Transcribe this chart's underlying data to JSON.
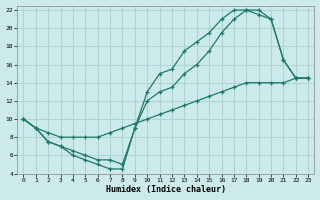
{
  "xlabel": "Humidex (Indice chaleur)",
  "bg_color": "#cdeaea",
  "grid_color": "#aed4d4",
  "line_color": "#1a7a6a",
  "xlim": [
    -0.5,
    23.5
  ],
  "ylim": [
    4,
    22.5
  ],
  "xticks": [
    0,
    1,
    2,
    3,
    4,
    5,
    6,
    7,
    8,
    9,
    10,
    11,
    12,
    13,
    14,
    15,
    16,
    17,
    18,
    19,
    20,
    21,
    22,
    23
  ],
  "yticks": [
    4,
    6,
    8,
    10,
    12,
    14,
    16,
    18,
    20,
    22
  ],
  "line1_x": [
    0,
    1,
    2,
    3,
    4,
    5,
    6,
    7,
    8,
    9,
    10,
    11,
    12,
    13,
    14,
    15,
    16,
    17,
    18,
    19,
    20,
    21,
    22,
    23
  ],
  "line1_y": [
    10,
    9,
    7.5,
    7,
    6,
    5.5,
    5,
    4.5,
    4.5,
    9,
    13,
    15,
    15.5,
    17.5,
    18.5,
    19.5,
    21,
    22,
    22,
    22,
    21,
    16.5,
    14.5,
    14.5
  ],
  "line2_x": [
    0,
    1,
    2,
    3,
    4,
    5,
    6,
    7,
    8,
    9,
    10,
    11,
    12,
    13,
    14,
    15,
    16,
    17,
    18,
    19,
    20,
    21,
    22,
    23
  ],
  "line2_y": [
    10,
    9,
    7.5,
    7,
    6.5,
    6,
    5.5,
    5.5,
    5,
    9,
    12,
    13,
    13.5,
    15,
    16,
    17.5,
    19.5,
    21,
    22,
    21.5,
    21,
    16.5,
    14.5,
    14.5
  ],
  "line3_x": [
    0,
    1,
    2,
    3,
    4,
    5,
    6,
    7,
    8,
    9,
    10,
    11,
    12,
    13,
    14,
    15,
    16,
    17,
    18,
    19,
    20,
    21,
    22,
    23
  ],
  "line3_y": [
    10,
    9,
    8.5,
    8,
    8,
    8,
    8,
    8.5,
    9,
    9.5,
    10,
    10.5,
    11,
    11.5,
    12,
    12.5,
    13,
    13.5,
    14,
    14,
    14,
    14,
    14.5,
    14.5
  ]
}
